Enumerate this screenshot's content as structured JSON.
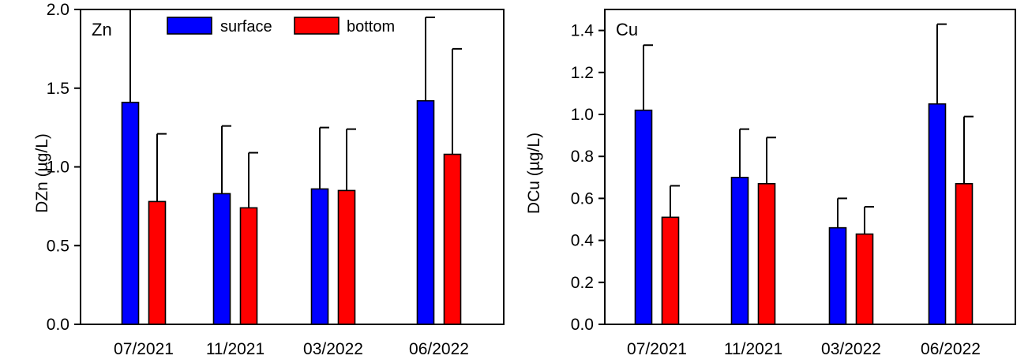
{
  "chart_data": [
    {
      "type": "bar",
      "panel_label": "Zn",
      "title": "",
      "xlabel": "",
      "ylabel": "DZn (µg/L)",
      "ylim": [
        0,
        2.0
      ],
      "yticks": [
        "0.0",
        "0.5",
        "1.0",
        "1.5",
        "2.0"
      ],
      "ytick_values": [
        0,
        0.5,
        1.0,
        1.5,
        2.0
      ],
      "categories": [
        "07/2021",
        "11/2021",
        "03/2022",
        "06/2022"
      ],
      "legend": {
        "placement": "top-center"
      },
      "series": [
        {
          "name": "surface",
          "color": "#0000ff",
          "values": [
            1.41,
            0.83,
            0.86,
            1.42
          ],
          "errors": [
            0.59,
            0.43,
            0.39,
            0.53
          ]
        },
        {
          "name": "bottom",
          "color": "#ff0000",
          "values": [
            0.78,
            0.74,
            0.85,
            1.08
          ],
          "errors": [
            0.43,
            0.35,
            0.39,
            0.67
          ]
        }
      ]
    },
    {
      "type": "bar",
      "panel_label": "Cu",
      "title": "",
      "xlabel": "",
      "ylabel": "DCu (µg/L)",
      "ylim": [
        0,
        1.5
      ],
      "yticks": [
        "0.0",
        "0.2",
        "0.4",
        "0.6",
        "0.8",
        "1.0",
        "1.2",
        "1.4"
      ],
      "ytick_values": [
        0,
        0.2,
        0.4,
        0.6,
        0.8,
        1.0,
        1.2,
        1.4
      ],
      "categories": [
        "07/2021",
        "11/2021",
        "03/2022",
        "06/2022"
      ],
      "legend": null,
      "series": [
        {
          "name": "surface",
          "color": "#0000ff",
          "values": [
            1.02,
            0.7,
            0.46,
            1.05
          ],
          "errors": [
            0.31,
            0.23,
            0.14,
            0.38
          ]
        },
        {
          "name": "bottom",
          "color": "#ff0000",
          "values": [
            0.51,
            0.67,
            0.43,
            0.67
          ],
          "errors": [
            0.15,
            0.22,
            0.13,
            0.32
          ]
        }
      ]
    }
  ]
}
